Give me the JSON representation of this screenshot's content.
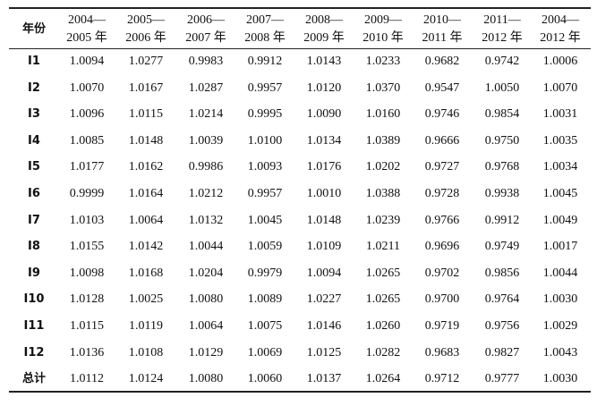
{
  "table": {
    "header": [
      "年份",
      [
        "2004—",
        "2005 年"
      ],
      [
        "2005—",
        "2006 年"
      ],
      [
        "2006—",
        "2007 年"
      ],
      [
        "2007—",
        "2008 年"
      ],
      [
        "2008—",
        "2009 年"
      ],
      [
        "2009—",
        "2010 年"
      ],
      [
        "2010—",
        "2011 年"
      ],
      [
        "2011—",
        "2012 年"
      ],
      [
        "2004—",
        "2012 年"
      ]
    ],
    "rows": [
      [
        "I1",
        "1.0094",
        "1.0277",
        "0.9983",
        "0.9912",
        "1.0143",
        "1.0233",
        "0.9682",
        "0.9742",
        "1.0006"
      ],
      [
        "I2",
        "1.0070",
        "1.0167",
        "1.0287",
        "0.9957",
        "1.0120",
        "1.0370",
        "0.9547",
        "1.0050",
        "1.0070"
      ],
      [
        "I3",
        "1.0096",
        "1.0115",
        "1.0214",
        "0.9995",
        "1.0090",
        "1.0160",
        "0.9746",
        "0.9854",
        "1.0031"
      ],
      [
        "I4",
        "1.0085",
        "1.0148",
        "1.0039",
        "1.0100",
        "1.0134",
        "1.0389",
        "0.9666",
        "0.9750",
        "1.0035"
      ],
      [
        "I5",
        "1.0177",
        "1.0162",
        "0.9986",
        "1.0093",
        "1.0176",
        "1.0202",
        "0.9727",
        "0.9768",
        "1.0034"
      ],
      [
        "I6",
        "0.9999",
        "1.0164",
        "1.0212",
        "0.9957",
        "1.0010",
        "1.0388",
        "0.9728",
        "0.9938",
        "1.0045"
      ],
      [
        "I7",
        "1.0103",
        "1.0064",
        "1.0132",
        "1.0045",
        "1.0148",
        "1.0239",
        "0.9766",
        "0.9912",
        "1.0049"
      ],
      [
        "I8",
        "1.0155",
        "1.0142",
        "1.0044",
        "1.0059",
        "1.0109",
        "1.0211",
        "0.9696",
        "0.9749",
        "1.0017"
      ],
      [
        "I9",
        "1.0098",
        "1.0168",
        "1.0204",
        "0.9979",
        "1.0094",
        "1.0265",
        "0.9702",
        "0.9856",
        "1.0044"
      ],
      [
        "I10",
        "1.0128",
        "1.0025",
        "1.0080",
        "1.0089",
        "1.0227",
        "1.0265",
        "0.9700",
        "0.9764",
        "1.0030"
      ],
      [
        "I11",
        "1.0115",
        "1.0119",
        "1.0064",
        "1.0075",
        "1.0146",
        "1.0260",
        "0.9719",
        "0.9756",
        "1.0029"
      ],
      [
        "I12",
        "1.0136",
        "1.0108",
        "1.0129",
        "1.0069",
        "1.0125",
        "1.0282",
        "0.9683",
        "0.9827",
        "1.0043"
      ],
      [
        "总计",
        "1.0112",
        "1.0124",
        "1.0080",
        "1.0060",
        "1.0137",
        "1.0264",
        "0.9712",
        "0.9777",
        "1.0030"
      ]
    ]
  }
}
